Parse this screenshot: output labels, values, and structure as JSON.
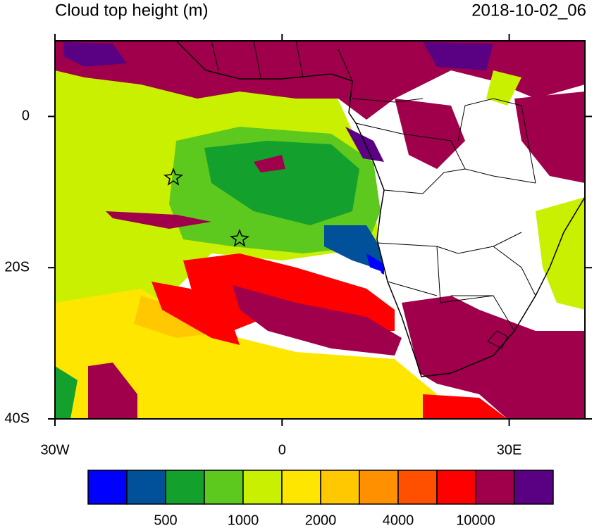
{
  "title": "Cloud top height (m)",
  "time": "2018-10-02_06",
  "map": {
    "xlim": [
      -30,
      40
    ],
    "ylim": [
      -40,
      10
    ],
    "xticks": [
      {
        "value": -30,
        "label": "30W"
      },
      0,
      {
        "value": 30,
        "label": "30E"
      }
    ],
    "yticks": [
      0,
      {
        "value": -20,
        "label": "20S"
      },
      {
        "value": -40,
        "label": "40S"
      }
    ]
  },
  "colorbar": {
    "colors": [
      "#0000ff",
      "#00509a",
      "#14a02d",
      "#5dc81d",
      "#c8f000",
      "#ffe600",
      "#ffc800",
      "#ff9000",
      "#ff5000",
      "#ff0000",
      "#a0004b",
      "#5a0082"
    ],
    "labels": [
      "500",
      "1000",
      "2000",
      "4000",
      "10000"
    ]
  }
}
